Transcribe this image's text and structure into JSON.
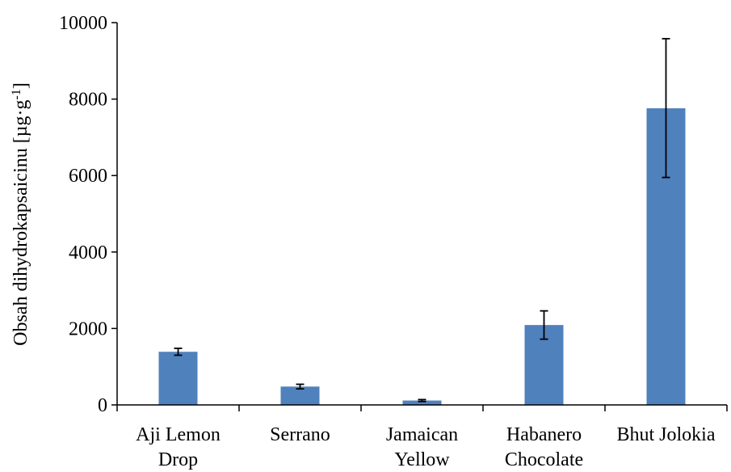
{
  "chart_data": {
    "type": "bar",
    "categories": [
      [
        "Aji Lemon",
        "Drop"
      ],
      [
        "Serrano"
      ],
      [
        "Jamaican",
        "Yellow"
      ],
      [
        "Habanero",
        "Chocolate"
      ],
      [
        "Bhut Jolokia"
      ]
    ],
    "values": [
      1390,
      480,
      115,
      2090,
      7760
    ],
    "error_low": [
      1300,
      420,
      90,
      1720,
      5950
    ],
    "error_high": [
      1480,
      540,
      140,
      2460,
      9580
    ],
    "ylabel": {
      "main": "Obsah dihydrokapsaicinu [µg·g",
      "sup": "-1",
      "close": "]"
    },
    "ylim": [
      0,
      10000
    ],
    "yticks": [
      "0",
      "2000",
      "4000",
      "6000",
      "8000",
      "10000"
    ],
    "ytick_values": [
      0,
      2000,
      4000,
      6000,
      8000,
      10000
    ],
    "bar_color": "#4f81bd",
    "grid": false,
    "legend": "none"
  }
}
